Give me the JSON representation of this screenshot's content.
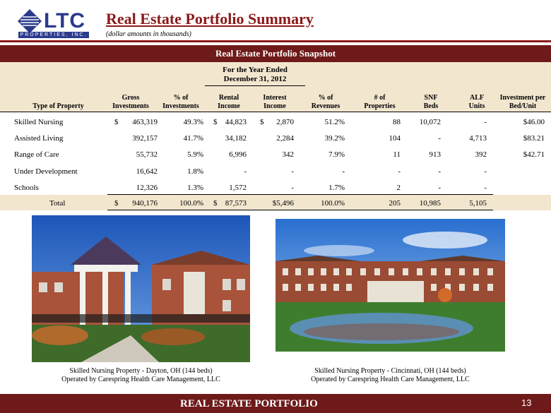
{
  "logo": {
    "letters": "LTC",
    "sub": "PROPERTIES, INC."
  },
  "header": {
    "title": "Real Estate Portfolio Summary",
    "subtitle": "(dollar amounts in thousands)"
  },
  "snapshot": {
    "bar_title": "Real Estate Portfolio Snapshot",
    "period_line1": "For the Year Ended",
    "period_line2": "December 31, 2012"
  },
  "table": {
    "columns": [
      {
        "l1": "",
        "l2": "Type of Property"
      },
      {
        "l1": "Gross",
        "l2": "Investments"
      },
      {
        "l1": "% of",
        "l2": "Investments"
      },
      {
        "l1": "Rental",
        "l2": "Income"
      },
      {
        "l1": "Interest",
        "l2": "Income"
      },
      {
        "l1": "% of",
        "l2": "Revenues"
      },
      {
        "l1": "# of",
        "l2": "Properties"
      },
      {
        "l1": "SNF",
        "l2": "Beds"
      },
      {
        "l1": "ALF",
        "l2": "Units"
      },
      {
        "l1": "Investment per",
        "l2": "Bed/Unit"
      }
    ],
    "rows": [
      {
        "type": "Skilled Nursing",
        "gross_sign": "$",
        "gross": "463,319",
        "pct_inv": "49.3%",
        "rental_sign": "$",
        "rental": "44,823",
        "interest_sign": "$",
        "interest": "2,870",
        "pct_rev": "51.2%",
        "props": "88",
        "snf": "10,072",
        "alf": "-",
        "per": "$46.00"
      },
      {
        "type": "Assisted Living",
        "gross_sign": "",
        "gross": "392,157",
        "pct_inv": "41.7%",
        "rental_sign": "",
        "rental": "34,182",
        "interest_sign": "",
        "interest": "2,284",
        "pct_rev": "39.2%",
        "props": "104",
        "snf": "-",
        "alf": "4,713",
        "per": "$83.21"
      },
      {
        "type": "Range of Care",
        "gross_sign": "",
        "gross": "55,732",
        "pct_inv": "5.9%",
        "rental_sign": "",
        "rental": "6,996",
        "interest_sign": "",
        "interest": "342",
        "pct_rev": "7.9%",
        "props": "11",
        "snf": "913",
        "alf": "392",
        "per": "$42.71"
      },
      {
        "type": "Under Development",
        "gross_sign": "",
        "gross": "16,642",
        "pct_inv": "1.8%",
        "rental_sign": "",
        "rental": "-",
        "interest_sign": "",
        "interest": "-",
        "pct_rev": "-",
        "props": "-",
        "snf": "-",
        "alf": "-",
        "per": ""
      },
      {
        "type": "Schools",
        "gross_sign": "",
        "gross": "12,326",
        "pct_inv": "1.3%",
        "rental_sign": "",
        "rental": "1,572",
        "interest_sign": "",
        "interest": "-",
        "pct_rev": "1.7%",
        "props": "2",
        "snf": "-",
        "alf": "-",
        "per": ""
      }
    ],
    "total": {
      "type": "Total",
      "gross_sign": "$",
      "gross": "940,176",
      "pct_inv": "100.0%",
      "rental_sign": "$",
      "rental": "87,573",
      "interest": "$5,496",
      "pct_rev": "100.0%",
      "props": "205",
      "snf": "10,985",
      "alf": "5,105"
    }
  },
  "photos": {
    "left": {
      "caption1": "Skilled Nursing Property - Dayton, OH  (144 beds)",
      "caption2": "Operated by Carespring Health Care Management, LLC"
    },
    "right": {
      "caption1": "Skilled Nursing Property - Cincinnati, OH  (144 beds)",
      "caption2": "Operated by Carespring Health Care Management, LLC"
    }
  },
  "footer": {
    "label": "REAL ESTATE PORTFOLIO",
    "page": "13"
  },
  "colors": {
    "accent": "#6e1a1a",
    "title": "#8b1a1a",
    "band": "#f2e6cf",
    "logo": "#2b3a8c"
  }
}
